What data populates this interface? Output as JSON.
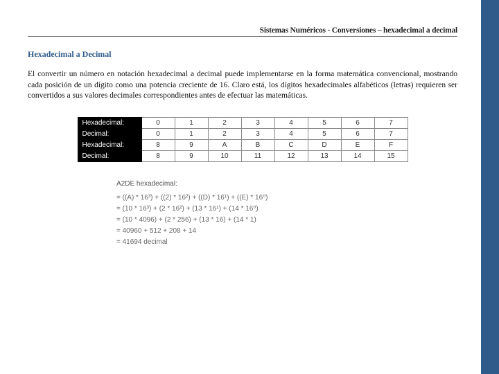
{
  "header": {
    "title": "Sistemas Numéricos - Conversiones – hexadecimal a decimal"
  },
  "section": {
    "title": "Hexadecimal a Decimal",
    "paragraph": "El convertir un número en notación hexadecimal a decimal puede implementarse en la forma matemática convencional, mostrando cada posición de un dígito como una potencia creciente de 16. Claro está, los dígitos hexadecimales alfabéticos (letras) requieren ser convertidos a sus valores decimales correspondientes antes de efectuar las matemáticas."
  },
  "table": {
    "rows": [
      {
        "label": "Hexadecimal:",
        "cells": [
          "0",
          "1",
          "2",
          "3",
          "4",
          "5",
          "6",
          "7"
        ]
      },
      {
        "label": "Decimal:",
        "cells": [
          "0",
          "1",
          "2",
          "3",
          "4",
          "5",
          "6",
          "7"
        ]
      },
      {
        "label": "Hexadecimal:",
        "cells": [
          "8",
          "9",
          "A",
          "B",
          "C",
          "D",
          "E",
          "F"
        ]
      },
      {
        "label": "Decimal:",
        "cells": [
          "8",
          "9",
          "10",
          "11",
          "12",
          "13",
          "14",
          "15"
        ]
      }
    ]
  },
  "calc": {
    "title": "A2DE hexadecimal:",
    "lines": [
      "= ((A) * 16³) + ((2) * 16²) + ((D) * 16¹) + ((E) * 16⁰)",
      "= (10 * 16³) + (2 * 16²) + (13 * 16¹) + (14 * 16⁰)",
      "= (10 * 4096) + (2 * 256) + (13 * 16) + (14 * 1)",
      "= 40960 + 512 + 208 + 14",
      "= 41694 decimal"
    ]
  },
  "colors": {
    "sidebar": "#2e5b8a",
    "section_title": "#2e5b8a",
    "table_label_bg": "#000000",
    "table_label_fg": "#ffffff",
    "calc_text": "#666666"
  }
}
